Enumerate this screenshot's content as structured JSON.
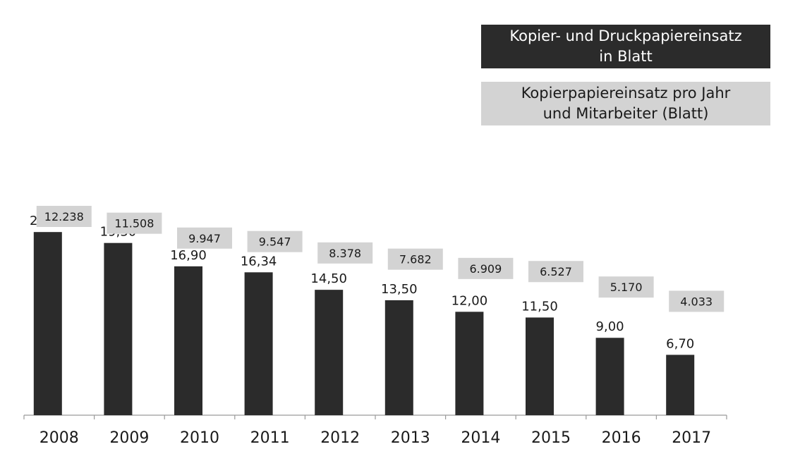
{
  "chart_data": {
    "type": "bar",
    "categories": [
      "2008",
      "2009",
      "2010",
      "2011",
      "2012",
      "2013",
      "2014",
      "2015",
      "2016",
      "2017"
    ],
    "series": [
      {
        "name": "Kopier- und Druckpapiereinsatz in Blatt",
        "values": [
          12238,
          11508,
          9947,
          9547,
          8378,
          7682,
          6909,
          6527,
          5170,
          4033
        ],
        "labels": [
          "12.238",
          "11.508",
          "9.947",
          "9.547",
          "8.378",
          "7.682",
          "6.909",
          "6.527",
          "5.170",
          "4.033"
        ],
        "color": "#2b2b2b"
      },
      {
        "name": "Kopierpapiereinsatz pro Jahr und Mitarbeiter (Blatt)",
        "values": [
          20.4,
          19.3,
          16.9,
          16.34,
          14.5,
          13.5,
          12.0,
          11.5,
          9.0,
          6.7
        ],
        "labels": [
          "20,40",
          "19,30",
          "16,90",
          "16,34",
          "14,50",
          "13,50",
          "12,00",
          "11,50",
          "9,00",
          "6,70"
        ],
        "color": "#d3d3d3"
      }
    ],
    "legend": {
      "position": "top-right",
      "dark_lines": [
        "Kopier- und Druckpapiereinsatz",
        "in Blatt"
      ],
      "light_lines": [
        "Kopierpapiereinsatz pro Jahr",
        "und Mitarbeiter (Blatt)"
      ]
    },
    "grid": false
  }
}
